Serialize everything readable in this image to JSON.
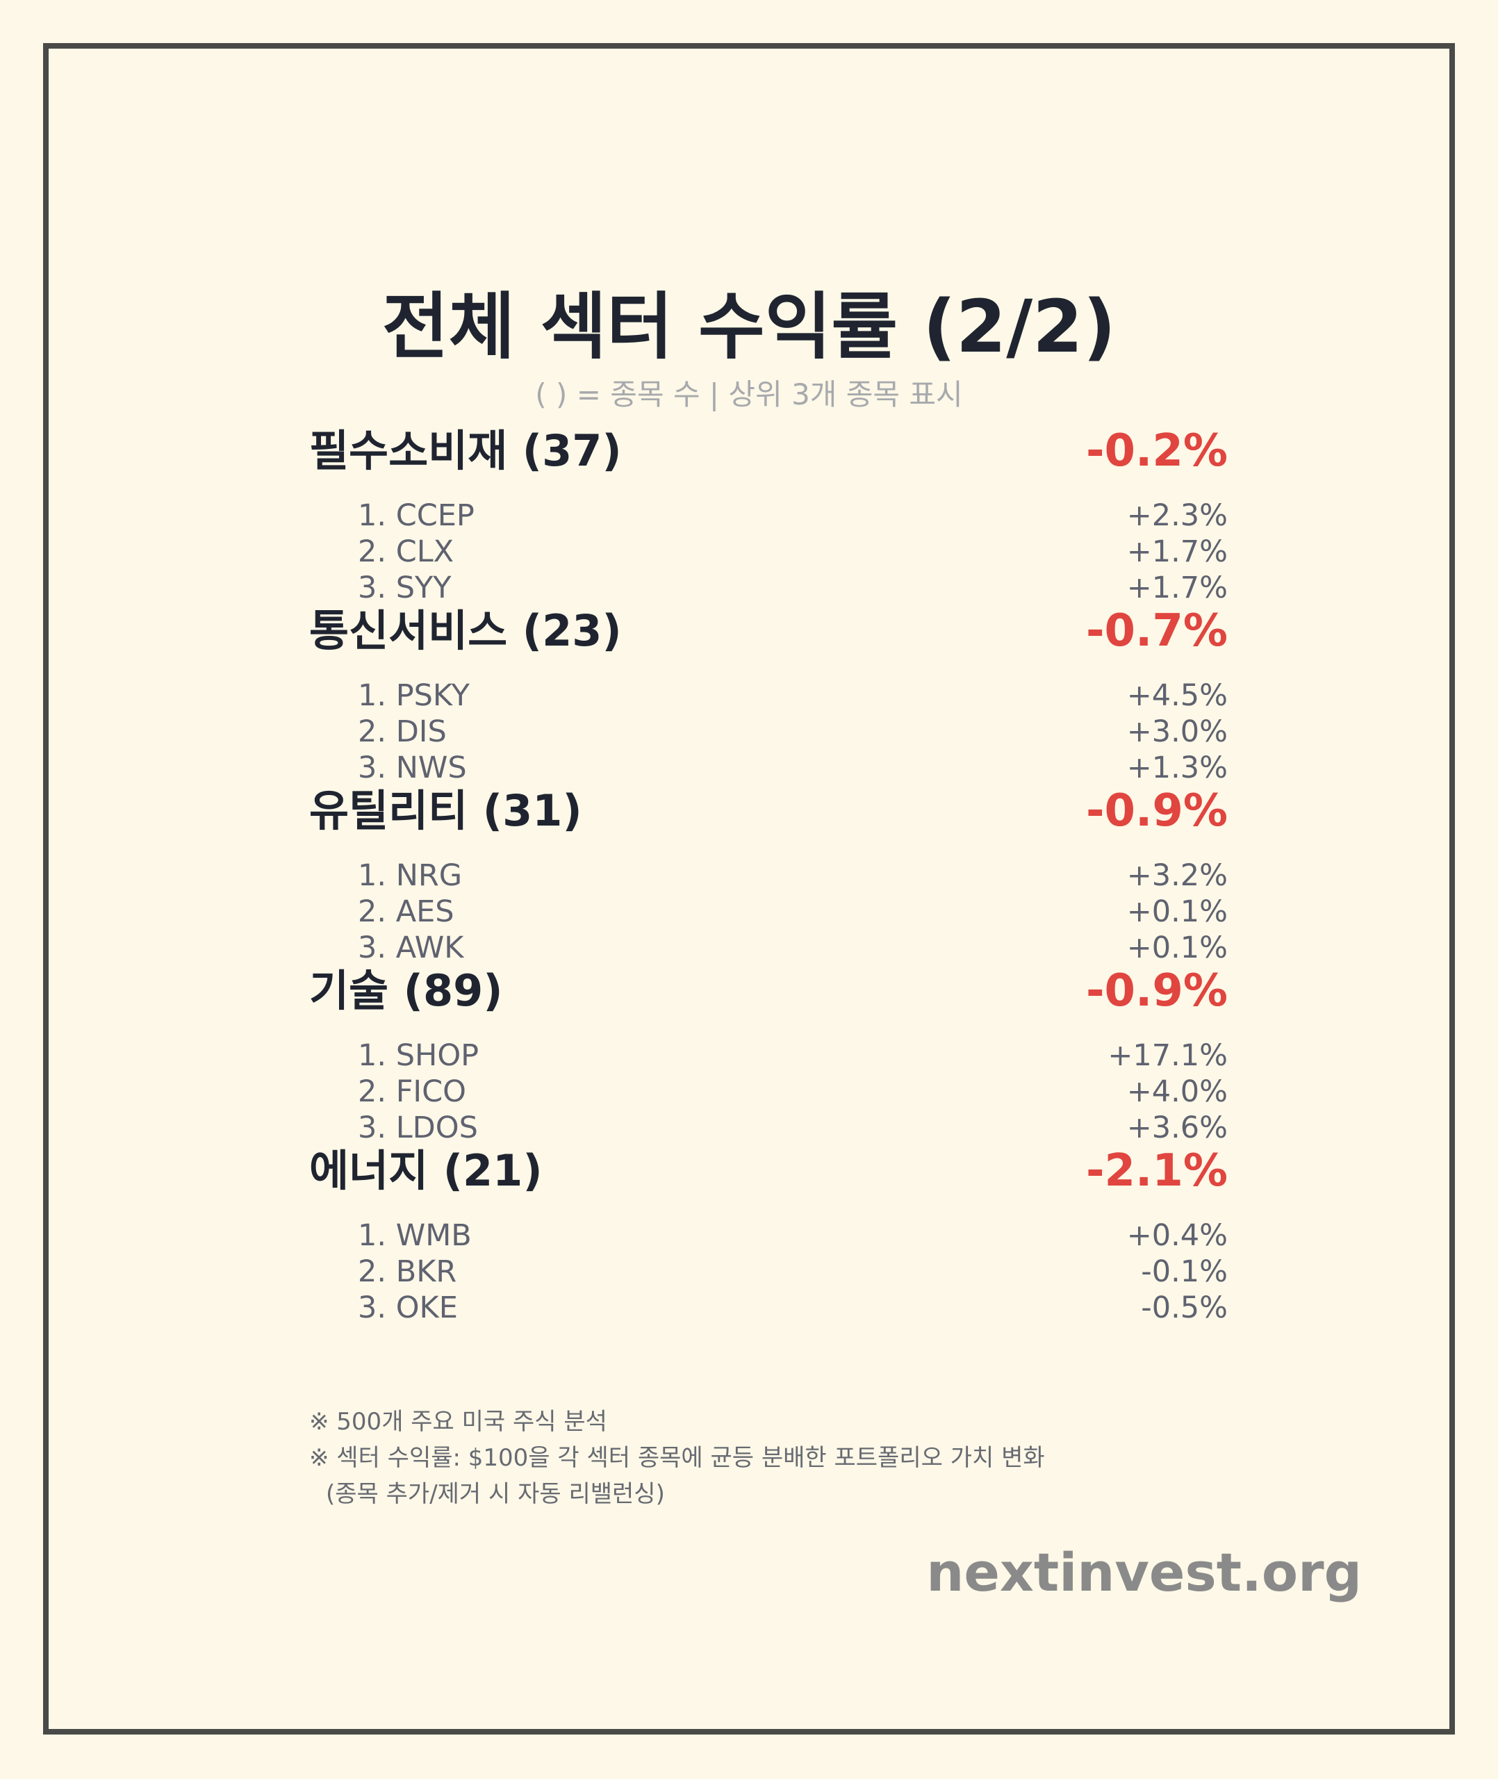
{
  "title": "전체 섹터 수익률 (2/2)",
  "subtitle": "( ) = 종목 수 | 상위 3개 종목 표시",
  "sectors": [
    {
      "name": "필수소비재 (37)",
      "return": "-0.2%",
      "stocks": [
        {
          "label": "1. CCEP",
          "return": "+2.3%"
        },
        {
          "label": "2. CLX",
          "return": "+1.7%"
        },
        {
          "label": "3. SYY",
          "return": "+1.7%"
        }
      ]
    },
    {
      "name": "통신서비스 (23)",
      "return": "-0.7%",
      "stocks": [
        {
          "label": "1. PSKY",
          "return": "+4.5%"
        },
        {
          "label": "2. DIS",
          "return": "+3.0%"
        },
        {
          "label": "3. NWS",
          "return": "+1.3%"
        }
      ]
    },
    {
      "name": "유틸리티 (31)",
      "return": "-0.9%",
      "stocks": [
        {
          "label": "1. NRG",
          "return": "+3.2%"
        },
        {
          "label": "2. AES",
          "return": "+0.1%"
        },
        {
          "label": "3. AWK",
          "return": "+0.1%"
        }
      ]
    },
    {
      "name": "기술 (89)",
      "return": "-0.9%",
      "stocks": [
        {
          "label": "1. SHOP",
          "return": "+17.1%"
        },
        {
          "label": "2. FICO",
          "return": "+4.0%"
        },
        {
          "label": "3. LDOS",
          "return": "+3.6%"
        }
      ]
    },
    {
      "name": "에너지 (21)",
      "return": "-2.1%",
      "stocks": [
        {
          "label": "1. WMB",
          "return": "+0.4%"
        },
        {
          "label": "2. BKR",
          "return": "-0.1%"
        },
        {
          "label": "3. OKE",
          "return": "-0.5%"
        }
      ]
    }
  ],
  "notes": [
    "※ 500개 주요 미국 주식 분석",
    "※ 섹터 수익률: $100을 각 섹터 종목에 균등 분배한 포트폴리오 가치 변화",
    "(종목 추가/제거 시 자동 리밸런싱)"
  ],
  "brand": "nextinvest.org",
  "colors": {
    "background": "#fdf8e7",
    "frame": "#4a4a48",
    "heading": "#1f2430",
    "negative": "#e0453f",
    "muted": "#a7a9ad",
    "brand": "#8a8a8a"
  }
}
